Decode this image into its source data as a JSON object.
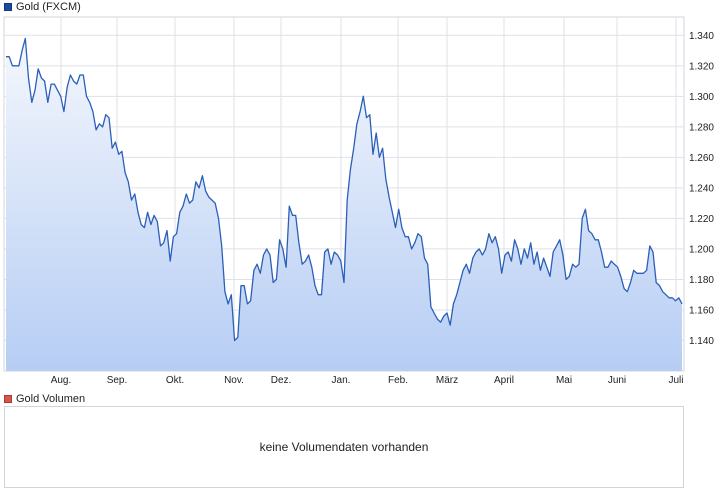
{
  "main_legend": {
    "label": "Gold (FXCM)",
    "color": "#1c4c9c"
  },
  "volume_legend": {
    "label": "Gold Volumen",
    "color": "#d9534f"
  },
  "volume_message": "keine Volumendaten vorhanden",
  "chart_data": {
    "type": "area",
    "series": [
      {
        "name": "Gold (FXCM)",
        "color": "#2b5fb8"
      }
    ],
    "x_tick_labels": [
      "Aug.",
      "Sep.",
      "Okt.",
      "Nov.",
      "Dez.",
      "Jan.",
      "Feb.",
      "März",
      "April",
      "Mai",
      "Juni",
      "Juli"
    ],
    "y_tick_labels": [
      "1.140",
      "1.160",
      "1.180",
      "1.200",
      "1.220",
      "1.240",
      "1.260",
      "1.280",
      "1.300",
      "1.320",
      "1.340"
    ],
    "y_ticks": [
      1.14,
      1.16,
      1.18,
      1.2,
      1.22,
      1.24,
      1.26,
      1.28,
      1.3,
      1.32,
      1.34
    ],
    "ylim": [
      1.12,
      1.352
    ],
    "grid": true,
    "values": [
      1.326,
      1.326,
      1.32,
      1.32,
      1.32,
      1.33,
      1.338,
      1.312,
      1.296,
      1.304,
      1.318,
      1.312,
      1.31,
      1.296,
      1.308,
      1.308,
      1.304,
      1.3,
      1.29,
      1.306,
      1.314,
      1.31,
      1.308,
      1.314,
      1.314,
      1.3,
      1.296,
      1.29,
      1.278,
      1.282,
      1.28,
      1.288,
      1.286,
      1.266,
      1.27,
      1.262,
      1.264,
      1.25,
      1.244,
      1.232,
      1.236,
      1.224,
      1.216,
      1.214,
      1.224,
      1.216,
      1.222,
      1.218,
      1.202,
      1.204,
      1.212,
      1.192,
      1.208,
      1.21,
      1.224,
      1.228,
      1.236,
      1.23,
      1.232,
      1.244,
      1.24,
      1.248,
      1.238,
      1.234,
      1.232,
      1.23,
      1.22,
      1.202,
      1.172,
      1.164,
      1.17,
      1.14,
      1.142,
      1.176,
      1.176,
      1.164,
      1.166,
      1.186,
      1.19,
      1.184,
      1.196,
      1.2,
      1.196,
      1.178,
      1.18,
      1.206,
      1.2,
      1.188,
      1.228,
      1.222,
      1.222,
      1.204,
      1.19,
      1.192,
      1.196,
      1.188,
      1.176,
      1.17,
      1.17,
      1.198,
      1.2,
      1.19,
      1.198,
      1.196,
      1.192,
      1.178,
      1.232,
      1.252,
      1.266,
      1.282,
      1.29,
      1.3,
      1.286,
      1.288,
      1.262,
      1.276,
      1.26,
      1.266,
      1.246,
      1.234,
      1.224,
      1.214,
      1.226,
      1.214,
      1.208,
      1.208,
      1.2,
      1.204,
      1.21,
      1.208,
      1.194,
      1.19,
      1.162,
      1.158,
      1.154,
      1.152,
      1.156,
      1.158,
      1.15,
      1.164,
      1.17,
      1.178,
      1.186,
      1.19,
      1.184,
      1.194,
      1.198,
      1.2,
      1.196,
      1.2,
      1.21,
      1.204,
      1.208,
      1.2,
      1.184,
      1.196,
      1.198,
      1.192,
      1.206,
      1.2,
      1.19,
      1.2,
      1.194,
      1.204,
      1.19,
      1.198,
      1.186,
      1.194,
      1.188,
      1.182,
      1.198,
      1.202,
      1.206,
      1.196,
      1.18,
      1.182,
      1.19,
      1.188,
      1.19,
      1.22,
      1.226,
      1.212,
      1.21,
      1.206,
      1.206,
      1.198,
      1.188,
      1.188,
      1.192,
      1.19,
      1.188,
      1.182,
      1.174,
      1.172,
      1.178,
      1.186,
      1.184,
      1.184,
      1.184,
      1.186,
      1.202,
      1.198,
      1.178,
      1.176,
      1.172,
      1.17,
      1.168,
      1.168,
      1.166,
      1.168,
      1.164
    ]
  }
}
